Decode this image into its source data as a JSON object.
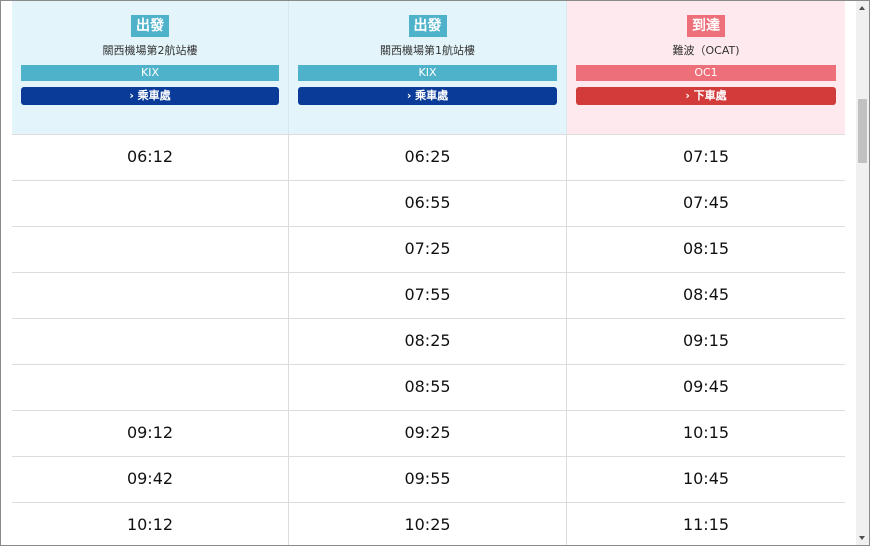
{
  "columns": [
    {
      "badge": "出發",
      "stop": "關西機場第2航站樓",
      "code": "KIX",
      "button": "› 乘車處",
      "type": "departure"
    },
    {
      "badge": "出發",
      "stop": "關西機場第1航站樓",
      "code": "KIX",
      "button": "› 乘車處",
      "type": "departure"
    },
    {
      "badge": "到達",
      "stop": "難波（OCAT)",
      "code": "OC1",
      "button": "› 下車處",
      "type": "arrival"
    }
  ],
  "rows": [
    [
      "06:12",
      "06:25",
      "07:15"
    ],
    [
      "",
      "06:55",
      "07:45"
    ],
    [
      "",
      "07:25",
      "08:15"
    ],
    [
      "",
      "07:55",
      "08:45"
    ],
    [
      "",
      "08:25",
      "09:15"
    ],
    [
      "",
      "08:55",
      "09:45"
    ],
    [
      "09:12",
      "09:25",
      "10:15"
    ],
    [
      "09:42",
      "09:55",
      "10:45"
    ],
    [
      "10:12",
      "10:25",
      "11:15"
    ]
  ],
  "colors": {
    "departure": "#4fb2cb",
    "departure_button": "#0a3b98",
    "arrival": "#ec6f79",
    "arrival_button": "#d33b3b"
  }
}
